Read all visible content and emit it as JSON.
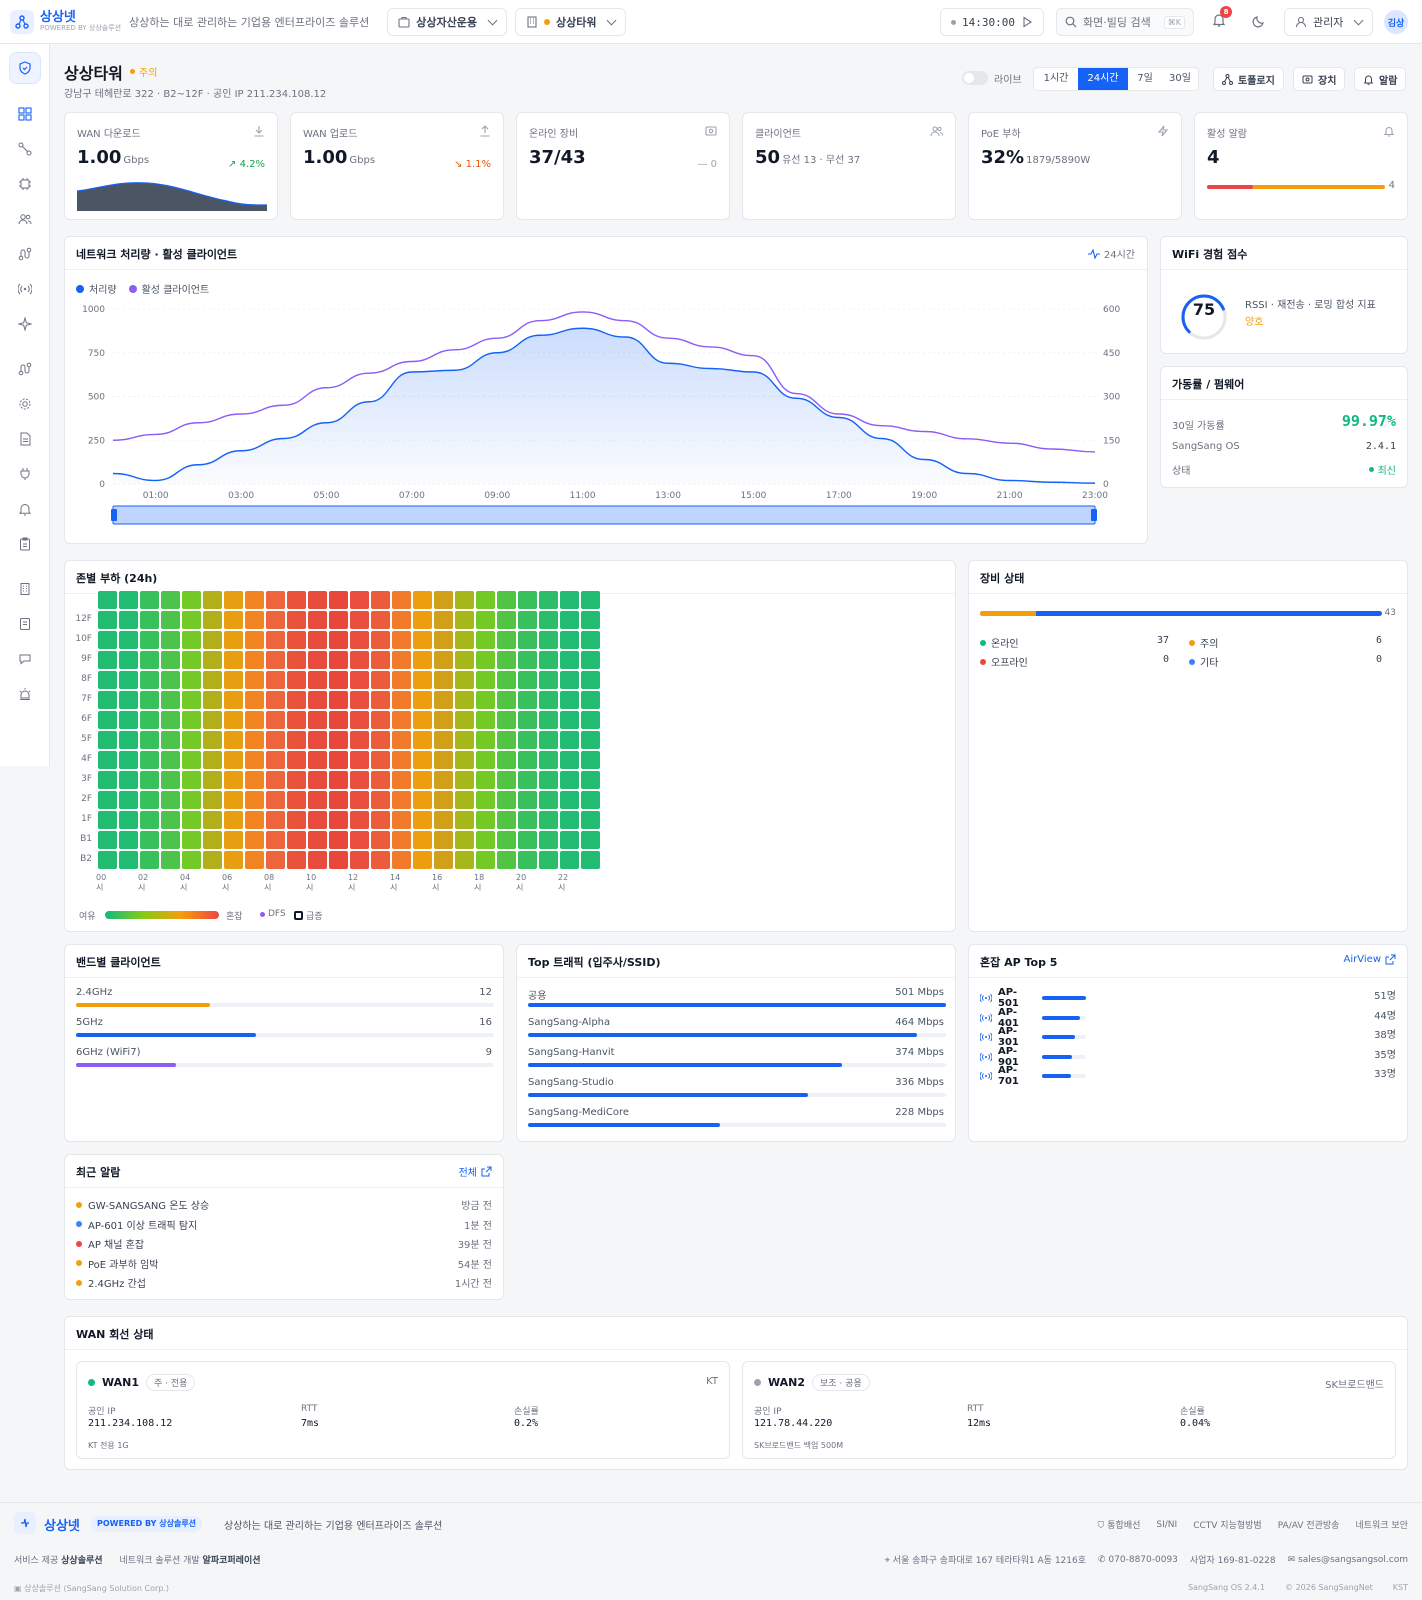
{
  "topbar": {
    "brand": "상상넷",
    "brand_sub": "POWERED BY 상상솔루션",
    "tagline": "상상하는 대로 관리하는 기업용 엔터프라이즈 솔루션",
    "org_select": "상상자산운용",
    "site_select": "상상타워",
    "clock": "14:30:00",
    "search_placeholder": "화면·빌딩 검색",
    "search_shortcut": "⌘K",
    "notif_count": "8",
    "user_label": "관리자",
    "avatar": "김상"
  },
  "site": {
    "name": "상상타워",
    "status": "주의",
    "meta": "강남구 테헤란로 322 · B2~12F · 공인 IP 211.234.108.12",
    "live_label": "라이브",
    "ranges": [
      "1시간",
      "24시간",
      "7일",
      "30일"
    ],
    "active_range": "24시간",
    "btn_topology": "토폴로지",
    "btn_devices": "장치",
    "btn_alerts": "알람"
  },
  "kpis": [
    {
      "label": "WAN 다운로드",
      "value": "1.00",
      "unit": "Gbps",
      "delta": "↗ 4.2%",
      "delta_color": "#16a34a",
      "icon": "download-icon"
    },
    {
      "label": "WAN 업로드",
      "value": "1.00",
      "unit": "Gbps",
      "delta": "↘ 1.1%",
      "delta_color": "#ea580c",
      "icon": "upload-icon"
    },
    {
      "label": "온라인 장비",
      "value": "37/43",
      "unit": "",
      "delta": "— 0",
      "delta_color": "#9ca3af",
      "icon": "device-icon"
    },
    {
      "label": "클라이언트",
      "value": "50",
      "unit": "유선 13 · 무선 37",
      "delta": "",
      "delta_color": "#9ca3af",
      "icon": "users-icon"
    },
    {
      "label": "PoE 부하",
      "value": "32%",
      "unit": "1879/5890W",
      "delta": "",
      "delta_color": "#9ca3af",
      "icon": "bolt-icon"
    },
    {
      "label": "활성 알람",
      "value": "4",
      "unit": "",
      "delta": "4",
      "delta_color": "#6b7280",
      "icon": "bell-icon"
    }
  ],
  "throughput": {
    "title": "네트워크 처리량 · 활성 클라이언트",
    "range_label": "24시간",
    "legend": [
      "처리량",
      "활성 클라이언트"
    ]
  },
  "chart_data": {
    "type": "line",
    "x": [
      "00:00",
      "01:00",
      "02:00",
      "03:00",
      "04:00",
      "05:00",
      "06:00",
      "07:00",
      "08:00",
      "09:00",
      "10:00",
      "11:00",
      "12:00",
      "13:00",
      "14:00",
      "15:00",
      "16:00",
      "17:00",
      "18:00",
      "19:00",
      "20:00",
      "21:00",
      "22:00",
      "23:00"
    ],
    "x_ticks": [
      "01:00",
      "03:00",
      "05:00",
      "07:00",
      "09:00",
      "11:00",
      "13:00",
      "15:00",
      "17:00",
      "19:00",
      "21:00",
      "23:00"
    ],
    "series": [
      {
        "name": "처리량",
        "axis": "left",
        "color": "#1662f5",
        "values": [
          60,
          20,
          110,
          190,
          260,
          350,
          470,
          640,
          650,
          750,
          850,
          890,
          840,
          690,
          660,
          640,
          490,
          380,
          260,
          140,
          60,
          20,
          10,
          5
        ]
      },
      {
        "name": "활성 클라이언트",
        "axis": "right",
        "color": "#8b5cf6",
        "values": [
          150,
          170,
          210,
          240,
          270,
          330,
          380,
          420,
          460,
          500,
          560,
          590,
          560,
          500,
          470,
          440,
          310,
          240,
          200,
          180,
          155,
          140,
          120,
          110
        ]
      }
    ],
    "ylim_left": [
      0,
      1000
    ],
    "yticks_left": [
      0,
      250,
      500,
      750,
      1000
    ],
    "ylim_right": [
      0,
      600
    ],
    "yticks_right": [
      0,
      150,
      300,
      450,
      600
    ],
    "grid": true,
    "legend": "top-left"
  },
  "wifi": {
    "title": "WiFi 경험 점수",
    "score": "75",
    "desc": "RSSI · 재전송 · 로밍 합성 지표",
    "grade": "양호"
  },
  "uptime": {
    "title": "가동률 / 펌웨어",
    "rows": [
      {
        "label": "30일 가동률",
        "value": "99.97%"
      },
      {
        "label": "SangSang OS",
        "value": "2.4.1"
      },
      {
        "label": "상태",
        "value": "최신"
      }
    ]
  },
  "heatmap": {
    "title": "존별 부하 (24h)",
    "floors": [
      "12F",
      "10F",
      "9F",
      "8F",
      "7F",
      "6F",
      "5F",
      "4F",
      "3F",
      "2F",
      "1F",
      "B1",
      "B2"
    ],
    "hour_labels": [
      "00시",
      "02시",
      "04시",
      "06시",
      "08시",
      "10시",
      "12시",
      "14시",
      "16시",
      "18시",
      "20시",
      "22시"
    ],
    "hourly_load": [
      0.05,
      0.05,
      0.12,
      0.18,
      0.3,
      0.45,
      0.6,
      0.72,
      0.82,
      0.9,
      0.93,
      0.95,
      0.92,
      0.86,
      0.75,
      0.62,
      0.52,
      0.42,
      0.3,
      0.2,
      0.12,
      0.08,
      0.05,
      0.05
    ],
    "legend_low": "여유",
    "legend_high": "혼잡",
    "legend_dfs": "DFS",
    "legend_spike": "급증"
  },
  "device_status": {
    "title": "장비 상태",
    "total": "43",
    "items": [
      {
        "label": "온라인",
        "value": "37",
        "color": "#10b981"
      },
      {
        "label": "주의",
        "value": "6",
        "color": "#f59e0b"
      },
      {
        "label": "오프라인",
        "value": "0",
        "color": "#ef4444"
      },
      {
        "label": "기타",
        "value": "0",
        "color": "#3b82f6"
      }
    ]
  },
  "bands": {
    "title": "밴드별 클라이언트",
    "items": [
      {
        "label": "2.4GHz",
        "value": "12",
        "fill": 0.32,
        "color": "#f59e0b"
      },
      {
        "label": "5GHz",
        "value": "16",
        "fill": 0.43,
        "color": "#1662f5"
      },
      {
        "label": "6GHz (WiFi7)",
        "value": "9",
        "fill": 0.24,
        "color": "#8b5cf6"
      }
    ]
  },
  "top_traffic": {
    "title": "Top 트래픽 (입주사/SSID)",
    "items": [
      {
        "label": "공용",
        "value": "501 Mbps",
        "fill": 1.0
      },
      {
        "label": "SangSang-Alpha",
        "value": "464 Mbps",
        "fill": 0.93
      },
      {
        "label": "SangSang-Hanvit",
        "value": "374 Mbps",
        "fill": 0.75
      },
      {
        "label": "SangSang-Studio",
        "value": "336 Mbps",
        "fill": 0.67
      },
      {
        "label": "SangSang-MediCore",
        "value": "228 Mbps",
        "fill": 0.46
      }
    ]
  },
  "congested_ap": {
    "title": "혼잡 AP Top 5",
    "link": "AirView",
    "items": [
      {
        "label": "AP-501",
        "value": "51명",
        "fill": 1.0
      },
      {
        "label": "AP-401",
        "value": "44명",
        "fill": 0.86
      },
      {
        "label": "AP-301",
        "value": "38명",
        "fill": 0.75
      },
      {
        "label": "AP-901",
        "value": "35명",
        "fill": 0.69
      },
      {
        "label": "AP-701",
        "value": "33명",
        "fill": 0.65
      }
    ]
  },
  "recent_alerts": {
    "title": "최근 알람",
    "link": "전체",
    "items": [
      {
        "text": "GW-SANGSANG 온도 상승",
        "time": "방금 전",
        "color": "#f59e0b"
      },
      {
        "text": "AP-601 이상 트래픽 탐지",
        "time": "1분 전",
        "color": "#3b82f6"
      },
      {
        "text": "AP 채널 혼잡",
        "time": "39분 전",
        "color": "#ef4444"
      },
      {
        "text": "PoE 과부하 임박",
        "time": "54분 전",
        "color": "#f59e0b"
      },
      {
        "text": "2.4GHz 간섭",
        "time": "1시간 전",
        "color": "#f59e0b"
      }
    ]
  },
  "wan": {
    "title": "WAN 회선 상태",
    "lines": [
      {
        "name": "WAN1",
        "tag": "주 · 전용",
        "isp": "KT",
        "dot": "#10b981",
        "ip_label": "공인 IP",
        "ip": "211.234.108.12",
        "rtt_label": "RTT",
        "rtt": "7ms",
        "loss_label": "손실률",
        "loss": "0.2%",
        "note": "KT 전용 1G"
      },
      {
        "name": "WAN2",
        "tag": "보조 · 공용",
        "isp": "SK브로드밴드",
        "dot": "#9ca3af",
        "ip_label": "공인 IP",
        "ip": "121.78.44.220",
        "rtt_label": "RTT",
        "rtt": "12ms",
        "loss_label": "손실률",
        "loss": "0.04%",
        "note": "SK브로드밴드 백업 500M"
      }
    ]
  },
  "footer": {
    "brand": "상상넷",
    "powered": "POWERED BY 상상솔루션",
    "tagline": "상상하는 대로 관리하는 기업용 엔터프라이즈 솔루션",
    "links": [
      "통합배선",
      "SI/NI",
      "CCTV 지능형방범",
      "PA/AV 전관방송",
      "네트워크 보안"
    ],
    "provider_label": "서비스 제공",
    "provider": "상상솔루션",
    "dev_label": "네트워크 솔루션 개발",
    "dev": "알파코퍼레이션",
    "address": "서울 송파구 송파대로 167 테라타워1 A동 1216호",
    "phone": "070-8870-0093",
    "biz": "사업자 169-81-0228",
    "email": "sales@sangsangsol.com",
    "copyright_left": "상상솔루션 (SangSang Solution Corp.)",
    "version": "SangSang OS 2.4.1",
    "copyright": "© 2026 SangSangNet",
    "tz": "KST"
  }
}
